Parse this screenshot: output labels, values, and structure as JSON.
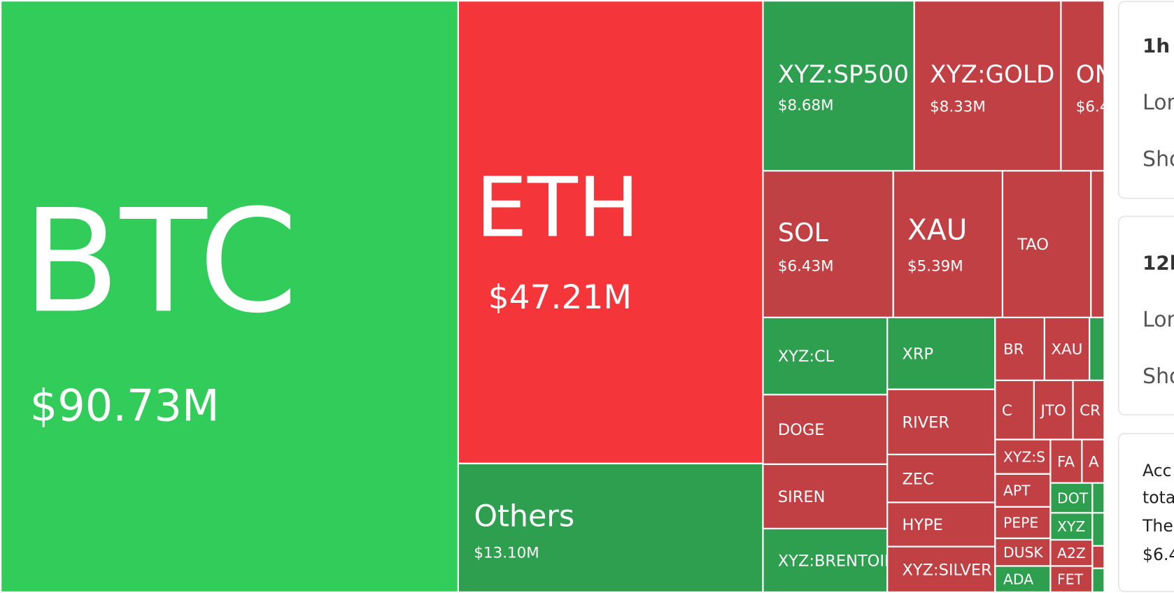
{
  "tiles": [
    {
      "label": "BTC",
      "value": "$90.73M",
      "color": "#31cc5a"
    },
    {
      "label": "ETH",
      "value": "$47.21M",
      "color": "#f4363b"
    },
    {
      "label": "Others",
      "value": "$13.10M",
      "color": "#2e9e4f"
    },
    {
      "label": "XYZ:SP500",
      "value": "$8.68M",
      "color": "#2e9e4f"
    },
    {
      "label": "XYZ:GOLD",
      "value": "$8.33M",
      "color": "#c04044"
    },
    {
      "label": "ON",
      "value": "$6.4",
      "color": "#c04044"
    },
    {
      "label": "SOL",
      "value": "$6.43M",
      "color": "#c04044"
    },
    {
      "label": "XAU",
      "value": "$5.39M",
      "color": "#c04044"
    },
    {
      "label": "TAO",
      "color": "#c04044"
    },
    {
      "color": "#c04044"
    },
    {
      "label": "XYZ:CL",
      "color": "#2e9e4f"
    },
    {
      "label": "XRP",
      "color": "#2e9e4f"
    },
    {
      "label": "BR",
      "color": "#c04044"
    },
    {
      "label": "XAU",
      "color": "#c04044"
    },
    {
      "color": "#2e9e4f"
    },
    {
      "label": "DOGE",
      "color": "#c04044"
    },
    {
      "label": "RIVER",
      "color": "#c04044"
    },
    {
      "label": "C",
      "color": "#c04044"
    },
    {
      "label": "JTO",
      "color": "#c04044"
    },
    {
      "label": "CR",
      "color": "#c04044"
    },
    {
      "label": "SIREN",
      "color": "#c04044"
    },
    {
      "label": "ZEC",
      "color": "#c04044"
    },
    {
      "label": "XYZ:S",
      "color": "#c04044"
    },
    {
      "label": "FA",
      "color": "#c04044"
    },
    {
      "label": "A",
      "color": "#c04044"
    },
    {
      "label": "APT",
      "color": "#c04044"
    },
    {
      "label": "DOT",
      "color": "#2e9e4f"
    },
    {
      "color": "#2e9e4f"
    },
    {
      "label": "HYPE",
      "color": "#c04044"
    },
    {
      "label": "PEPE",
      "color": "#c04044"
    },
    {
      "label": "XYZ",
      "color": "#2e9e4f"
    },
    {
      "color": "#2e9e4f"
    },
    {
      "label": "XYZ:BRENTOIL",
      "color": "#2e9e4f"
    },
    {
      "label": "XYZ:SILVER",
      "color": "#c04044"
    },
    {
      "label": "DUSK",
      "color": "#c04044"
    },
    {
      "label": "A2Z",
      "color": "#c04044"
    },
    {
      "color": "#c04044"
    },
    {
      "label": "ADA",
      "color": "#2e9e4f"
    },
    {
      "label": "FET",
      "color": "#c04044"
    },
    {
      "color": "#2e9e4f"
    }
  ],
  "panel": {
    "cards": [
      {
        "lines": [
          "1h",
          "Lon",
          "Sho"
        ]
      },
      {
        "lines": [
          "12h",
          "Lon",
          "Sho"
        ]
      },
      {
        "lines": [
          "Acc",
          "tota",
          "The",
          "$6.4"
        ]
      }
    ]
  }
}
